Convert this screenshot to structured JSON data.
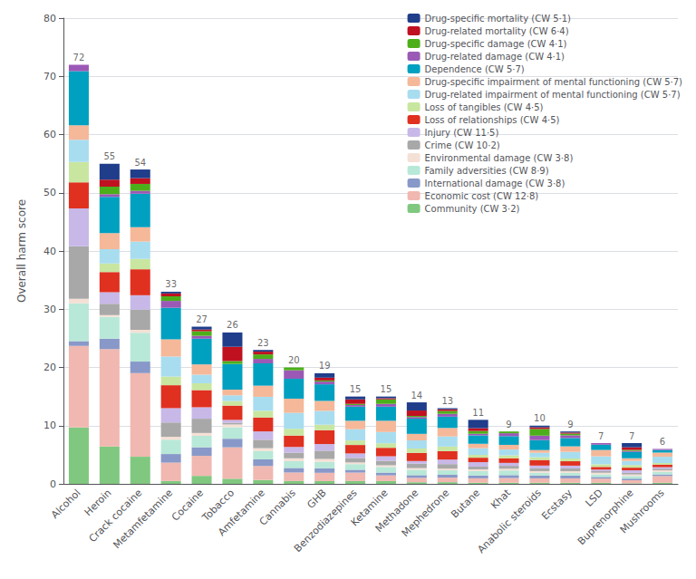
{
  "chart_data": {
    "type": "bar",
    "stacked": true,
    "categories": [
      "Alcohol",
      "Heroin",
      "Crack cocaine",
      "Metamfetamine",
      "Cocaine",
      "Tobacco",
      "Amfetamine",
      "Cannabis",
      "GHB",
      "Benzodiazepines",
      "Ketamine",
      "Methadone",
      "Mephedrone",
      "Butane",
      "Khat",
      "Anabolic steroids",
      "Ecstasy",
      "LSD",
      "Buprenorphine",
      "Mushrooms"
    ],
    "series": [
      {
        "name": "Drug-specific mortality (CW 5·1)",
        "color": "#1f3d8a",
        "values": [
          0,
          2.76,
          1.486,
          0.296,
          0.491,
          2.453,
          0.2875,
          0,
          0.76,
          0.484,
          0.29,
          1.4,
          0.194,
          1.435,
          0,
          0.286,
          0.189,
          0,
          0.718,
          0
        ]
      },
      {
        "name": "Drug-related mortality (CW 6·4)",
        "color": "#bf1120",
        "values": [
          0,
          1.183,
          0.991,
          0.493,
          0.295,
          2.453,
          0.479,
          0,
          0.475,
          0.774,
          0.194,
          0.933,
          0.291,
          0.478,
          0,
          0.286,
          0.189,
          0,
          0.449,
          0
        ]
      },
      {
        "name": "Drug-specific damage (CW 4·1)",
        "color": "#4caf1a",
        "values": [
          0,
          1.281,
          1.189,
          0.788,
          0.785,
          0.491,
          0.767,
          0.488,
          0.19,
          0.194,
          0.774,
          0.187,
          0.485,
          0.478,
          0.3,
          1.143,
          0.284,
          0,
          0.179,
          0
        ]
      },
      {
        "name": "Drug-related damage (CW 4·1)",
        "color": "#9b59b6",
        "values": [
          1.1,
          0.493,
          0.495,
          1.182,
          0.491,
          0,
          0.767,
          1.463,
          0.475,
          0.29,
          0.484,
          0.28,
          0.485,
          0.287,
          0.5,
          0.762,
          0.474,
          0.273,
          0.179,
          0.179
        ]
      },
      {
        "name": "Dependence (CW 5·7)",
        "color": "#00a0c0",
        "values": [
          9.3,
          6.21,
          5.747,
          5.418,
          4.418,
          4.415,
          3.833,
          3.415,
          2.85,
          2.419,
          2.419,
          2.613,
          1.94,
          1.435,
          1.5,
          1.714,
          1.421,
          0.909,
          1.077,
          0.448
        ]
      },
      {
        "name": "Drug-specific impairment of mental functioning (CW 5·7)",
        "color": "#f5b899",
        "values": [
          2.5,
          2.76,
          2.477,
          2.955,
          1.767,
          0.981,
          1.917,
          2.439,
          1.71,
          1.452,
          1.935,
          1.12,
          1.455,
          0.765,
          0.8,
          0.476,
          0.947,
          1.091,
          0.449,
          0.716
        ]
      },
      {
        "name": "Drug-related impairment of mental functioning (CW 5·7)",
        "color": "#a8ddf0",
        "values": [
          3.8,
          2.464,
          2.972,
          3.448,
          1.473,
          0.981,
          2.396,
          2.732,
          2.375,
          1.935,
          1.935,
          1.4,
          1.746,
          1.148,
          1,
          0.762,
          1.137,
          1.364,
          0.718,
          1.075
        ]
      },
      {
        "name": "Loss of tangibles (CW 4·5)",
        "color": "#c8e6a0",
        "values": [
          3.5,
          1.478,
          1.783,
          1.478,
          1.178,
          0.785,
          1.15,
          1.171,
          0.95,
          0.774,
          0.774,
          0.747,
          0.776,
          0.478,
          0.5,
          0.476,
          0.474,
          0.455,
          0.449,
          0.269
        ]
      },
      {
        "name": "Loss of relationships (CW 4·5)",
        "color": "#e03020",
        "values": [
          4.5,
          3.45,
          4.459,
          3.94,
          2.945,
          2.453,
          2.396,
          1.951,
          2.375,
          1.452,
          1.452,
          1.4,
          1.455,
          0.765,
          0.8,
          0.952,
          0.758,
          0.455,
          0.449,
          0.448
        ]
      },
      {
        "name": "Injury (CW 11·5)",
        "color": "#c8b8e8",
        "values": [
          6.5,
          1.971,
          2.477,
          2.463,
          1.964,
          0.491,
          1.4375,
          0.976,
          1.14,
          0.774,
          0.774,
          0.467,
          0.776,
          0.765,
          0.5,
          0.476,
          0.474,
          0.273,
          0.449,
          0.269
        ]
      },
      {
        "name": "Crime (CW 10·2)",
        "color": "#a8a8a8",
        "values": [
          9,
          1.971,
          3.468,
          2.463,
          2.455,
          0.294,
          1.4375,
          0.976,
          1.425,
          0.774,
          0.774,
          0.747,
          0.776,
          0.478,
          0.5,
          0.476,
          0.474,
          0.273,
          0.269,
          0.269
        ]
      },
      {
        "name": "Environmental damage (CW 3·8)",
        "color": "#f5e0d5",
        "values": [
          0.8,
          0.296,
          0.495,
          0.493,
          0.491,
          0.491,
          0.479,
          0.488,
          0.475,
          0.29,
          0.29,
          0.28,
          0.291,
          0.287,
          0.3,
          0.286,
          0.284,
          0.273,
          0.269,
          0.269
        ]
      },
      {
        "name": "Family adversities (CW 8·9)",
        "color": "#b8e8d8",
        "values": [
          6.5,
          3.746,
          4.954,
          2.463,
          1.964,
          1.962,
          1.4375,
          1.171,
          1.14,
          0.968,
          0.968,
          0.933,
          0.776,
          0.765,
          0.8,
          0.476,
          0.474,
          0.455,
          0.449,
          0.448
        ]
      },
      {
        "name": "International damage (CW 3·8)",
        "color": "#8898c8",
        "values": [
          0.8,
          1.774,
          1.982,
          1.478,
          1.473,
          1.472,
          1.15,
          0.78,
          0.76,
          0.484,
          0.484,
          0.467,
          0.485,
          0.478,
          0.5,
          0.476,
          0.474,
          0.273,
          0.269,
          0.269
        ]
      },
      {
        "name": "Economic cost (CW 12·8)",
        "color": "#f0b8b0",
        "values": [
          14,
          16.756,
          14.367,
          3.152,
          3.436,
          5.396,
          2.396,
          1.463,
          1.425,
          1.452,
          0.968,
          0.747,
          0.776,
          0.765,
          0.8,
          0.762,
          0.758,
          0.727,
          0.538,
          1.164
        ]
      },
      {
        "name": "Community (CW 3·2)",
        "color": "#80c880",
        "values": [
          9.7,
          6.407,
          4.657,
          0.493,
          1.375,
          0.883,
          0.671,
          0.488,
          0.475,
          0.484,
          0.484,
          0.28,
          0.291,
          0.191,
          0.2,
          0.19,
          0.189,
          0.182,
          0.09,
          0.179
        ]
      }
    ],
    "totals": [
      72,
      55,
      54,
      33,
      27,
      26,
      23,
      20,
      19,
      15,
      15,
      14,
      13,
      11,
      9,
      10,
      9,
      7,
      7,
      6
    ],
    "ylabel": "Overall harm score",
    "ylim": [
      0,
      80
    ],
    "yticks": [
      0,
      10,
      20,
      30,
      40,
      50,
      60,
      70,
      80
    ],
    "grid": true,
    "legend": "upper right"
  }
}
